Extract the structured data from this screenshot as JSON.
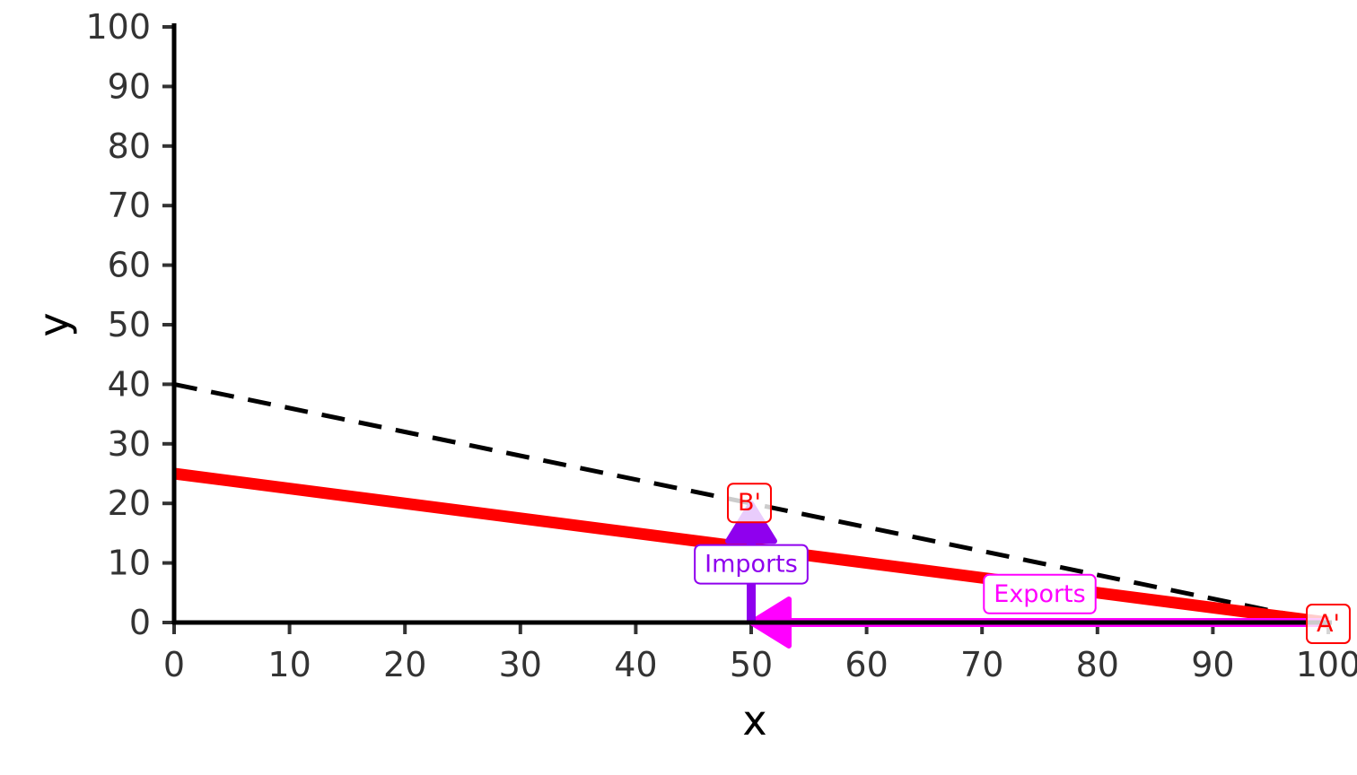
{
  "chart_data": {
    "type": "line",
    "title": "",
    "xlabel": "x",
    "ylabel": "y",
    "xlim": [
      0,
      100
    ],
    "ylim": [
      0,
      100
    ],
    "x_ticks": [
      0,
      10,
      20,
      30,
      40,
      50,
      60,
      70,
      80,
      90,
      100
    ],
    "y_ticks": [
      0,
      10,
      20,
      30,
      40,
      50,
      60,
      70,
      80,
      90,
      100
    ],
    "grid": false,
    "lines": [
      {
        "style": "dashed",
        "color": "#000000",
        "points": [
          [
            0,
            40
          ],
          [
            100,
            0
          ]
        ]
      },
      {
        "style": "solid",
        "color": "#ff0000",
        "points": [
          [
            0,
            25
          ],
          [
            100,
            0
          ]
        ]
      }
    ],
    "arrows": [
      {
        "label": "Exports",
        "color": "#ff00ff",
        "from": [
          100,
          0
        ],
        "to": [
          50,
          0
        ],
        "label_at": [
          75,
          5
        ]
      },
      {
        "label": "Imports",
        "color": "#8f00ee",
        "from": [
          50,
          0
        ],
        "to": [
          50,
          20
        ],
        "label_at": [
          50,
          10
        ]
      }
    ],
    "points": [
      {
        "label": "A'",
        "color": "#ff0000",
        "x": 100,
        "y": 0
      },
      {
        "label": "B'",
        "color": "#ff0000",
        "x": 50,
        "y": 20
      }
    ]
  }
}
